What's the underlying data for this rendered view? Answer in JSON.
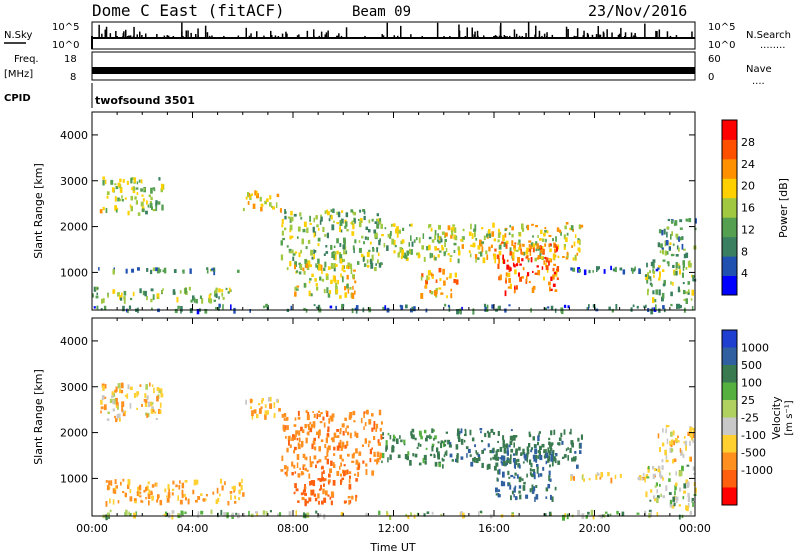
{
  "header": {
    "station": "Dome C East (fitACF)",
    "beam": "Beam 09",
    "date": "23/Nov/2016"
  },
  "strips": {
    "nsky": {
      "label": "N.Sky",
      "top_tick": "10^5",
      "bottom_tick": "10^0",
      "right_label": "N.Search",
      "right_dots": "........"
    },
    "freq": {
      "label_line1": "Freq.",
      "label_line2": "[MHz]",
      "left_ticks": [
        "18",
        "8"
      ],
      "right_ticks": [
        "60",
        "0"
      ],
      "right_label": "Nave",
      "right_dots": "...."
    },
    "cpid": {
      "label": "CPID",
      "value": "twofsound 3501"
    }
  },
  "colors": {
    "power_scale": [
      "#0000ff",
      "#2050b0",
      "#3a8060",
      "#55a050",
      "#a0c840",
      "#ffd000",
      "#ff9000",
      "#ff5000",
      "#ff0000"
    ],
    "velocity_scale": [
      "#1f3fd0",
      "#3060a0",
      "#3a7a50",
      "#55b040",
      "#b0d060",
      "#c8c8c8",
      "#ffd030",
      "#ff9020",
      "#ff6010",
      "#ff0000"
    ]
  },
  "chart_data": [
    {
      "type": "heatmap",
      "panel": "power",
      "ylabel": "Slant Range [km]",
      "xlim": [
        0,
        24
      ],
      "ylim": [
        180,
        4500
      ],
      "yticks": [
        "1000",
        "2000",
        "3000",
        "4000"
      ],
      "colorbar": {
        "label": "Power [dB]",
        "range": [
          0,
          32
        ],
        "ticks": [
          "4",
          "8",
          "12",
          "16",
          "20",
          "24",
          "28"
        ]
      },
      "echo_regions": [
        {
          "t0": 0.3,
          "t1": 2.8,
          "r0": 2300,
          "r1": 3100,
          "level": 16
        },
        {
          "t0": 0.0,
          "t1": 6.0,
          "r0": 1050,
          "r1": 1120,
          "level": 10
        },
        {
          "t0": 0.0,
          "t1": 5.5,
          "r0": 400,
          "r1": 700,
          "level": 14
        },
        {
          "t0": 0.0,
          "t1": 24.0,
          "r0": 200,
          "r1": 320,
          "level": 8
        },
        {
          "t0": 6.0,
          "t1": 7.5,
          "r0": 2400,
          "r1": 2800,
          "level": 20
        },
        {
          "t0": 7.5,
          "t1": 11.5,
          "r0": 1100,
          "r1": 2400,
          "level": 14
        },
        {
          "t0": 8.0,
          "t1": 10.5,
          "r0": 500,
          "r1": 1200,
          "level": 18
        },
        {
          "t0": 11.5,
          "t1": 14.0,
          "r0": 1300,
          "r1": 2100,
          "level": 16
        },
        {
          "t0": 13.0,
          "t1": 14.5,
          "r0": 500,
          "r1": 1100,
          "level": 22
        },
        {
          "t0": 14.0,
          "t1": 19.5,
          "r0": 1300,
          "r1": 2100,
          "level": 18
        },
        {
          "t0": 16.0,
          "t1": 18.5,
          "r0": 600,
          "r1": 1700,
          "level": 26
        },
        {
          "t0": 19.0,
          "t1": 22.5,
          "r0": 1050,
          "r1": 1150,
          "level": 8
        },
        {
          "t0": 22.0,
          "t1": 24.0,
          "r0": 400,
          "r1": 1300,
          "level": 14
        },
        {
          "t0": 22.5,
          "t1": 24.0,
          "r0": 1400,
          "r1": 2200,
          "level": 12
        }
      ]
    },
    {
      "type": "heatmap",
      "panel": "velocity",
      "ylabel": "Slant Range [km]",
      "xlabel": "Time UT",
      "xlim": [
        0,
        24
      ],
      "ylim": [
        180,
        4500
      ],
      "xticks": [
        "00:00",
        "04:00",
        "08:00",
        "12:00",
        "16:00",
        "20:00",
        "00:00"
      ],
      "yticks": [
        "1000",
        "2000",
        "3000",
        "4000"
      ],
      "colorbar": {
        "label_main": "Velocity",
        "label_units": "[m s⁻¹]",
        "ticks": [
          "1000",
          "500",
          "100",
          "25",
          "-25",
          "-100",
          "-500",
          "-1000"
        ]
      },
      "echo_regions": [
        {
          "t0": 0.3,
          "t1": 2.8,
          "r0": 2300,
          "r1": 3100,
          "velocity": -50
        },
        {
          "t0": 0.5,
          "t1": 6.0,
          "r0": 500,
          "r1": 1000,
          "velocity": -120
        },
        {
          "t0": 0.0,
          "t1": 24.0,
          "r0": 200,
          "r1": 320,
          "velocity": 40
        },
        {
          "t0": 6.0,
          "t1": 7.5,
          "r0": 2400,
          "r1": 2800,
          "velocity": -80
        },
        {
          "t0": 7.5,
          "t1": 11.5,
          "r0": 1100,
          "r1": 2500,
          "velocity": -200
        },
        {
          "t0": 8.0,
          "t1": 10.5,
          "r0": 500,
          "r1": 1200,
          "velocity": -300
        },
        {
          "t0": 11.5,
          "t1": 14.0,
          "r0": 1300,
          "r1": 2100,
          "velocity": 150
        },
        {
          "t0": 14.0,
          "t1": 19.5,
          "r0": 1300,
          "r1": 2100,
          "velocity": 200
        },
        {
          "t0": 16.0,
          "t1": 18.5,
          "r0": 600,
          "r1": 1700,
          "velocity": 250
        },
        {
          "t0": 19.0,
          "t1": 22.5,
          "r0": 1000,
          "r1": 1150,
          "velocity": -60
        },
        {
          "t0": 22.0,
          "t1": 24.0,
          "r0": 400,
          "r1": 1300,
          "velocity": 20
        },
        {
          "t0": 22.5,
          "t1": 24.0,
          "r0": 1400,
          "r1": 2200,
          "velocity": -40
        }
      ]
    }
  ]
}
